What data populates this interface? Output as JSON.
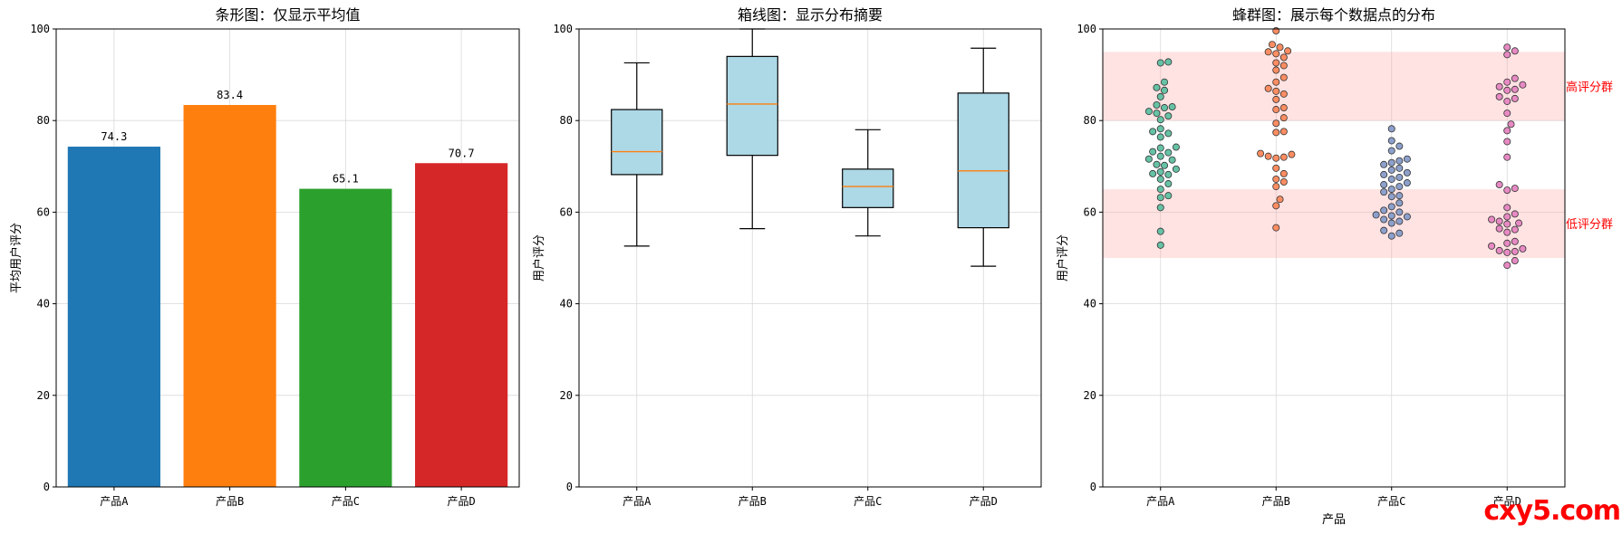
{
  "watermark": "cxy5.com",
  "chart_data": [
    {
      "type": "bar",
      "title": "条形图：仅显示平均值",
      "xlabel": "",
      "ylabel": "平均用户评分",
      "ylim": [
        0,
        100
      ],
      "yticks": [
        0,
        20,
        40,
        60,
        80,
        100
      ],
      "categories": [
        "产品A",
        "产品B",
        "产品C",
        "产品D"
      ],
      "values": [
        74.3,
        83.4,
        65.1,
        70.7
      ],
      "data_labels": [
        "74.3",
        "83.4",
        "65.1",
        "70.7"
      ],
      "colors": [
        "#1f77b4",
        "#ff7f0e",
        "#2ca02c",
        "#d62728"
      ],
      "grid": true
    },
    {
      "type": "box",
      "title": "箱线图：显示分布摘要",
      "xlabel": "",
      "ylabel": "用户评分",
      "ylim": [
        0,
        100
      ],
      "yticks": [
        0,
        20,
        40,
        60,
        80,
        100
      ],
      "categories": [
        "产品A",
        "产品B",
        "产品C",
        "产品D"
      ],
      "boxes": [
        {
          "whisker_low": 52.6,
          "q1": 68.2,
          "median": 73.2,
          "q3": 82.4,
          "whisker_high": 92.6
        },
        {
          "whisker_low": 56.4,
          "q1": 72.4,
          "median": 83.6,
          "q3": 94.0,
          "whisker_high": 100.0
        },
        {
          "whisker_low": 54.8,
          "q1": 61.0,
          "median": 65.6,
          "q3": 69.4,
          "whisker_high": 78.0
        },
        {
          "whisker_low": 48.2,
          "q1": 56.6,
          "median": 69.0,
          "q3": 86.0,
          "whisker_high": 95.8
        }
      ],
      "box_color": "#add8e6",
      "median_color": "#ff7f0e",
      "grid": true
    },
    {
      "type": "scatter",
      "title": "蜂群图：展示每个数据点的分布",
      "xlabel": "产品",
      "ylabel": "用户评分",
      "ylim": [
        0,
        100
      ],
      "yticks": [
        0,
        20,
        40,
        60,
        80,
        100
      ],
      "categories": [
        "产品A",
        "产品B",
        "产品C",
        "产品D"
      ],
      "colors": [
        "#66c2a5",
        "#fc8d62",
        "#8da0cb",
        "#e78ac3"
      ],
      "bands": [
        {
          "y0": 80,
          "y1": 95,
          "label": "高评分群",
          "color": "#ff9999"
        },
        {
          "y0": 50,
          "y1": 65,
          "label": "低评分群",
          "color": "#ff9999"
        }
      ],
      "series": [
        {
          "values": [
            52.8,
            55.8,
            61.0,
            63.2,
            63.6,
            65.0,
            66.2,
            67.2,
            68.2,
            68.4,
            68.8,
            69.4,
            70.2,
            70.4,
            71.4,
            71.6,
            72.2,
            73.0,
            73.2,
            74.0,
            74.2,
            76.4,
            77.2,
            77.6,
            78.2,
            80.2,
            81.0,
            81.6,
            82.0,
            82.8,
            83.0,
            83.4,
            85.2,
            86.6,
            87.2,
            88.4,
            92.6,
            92.8
          ]
        },
        {
          "values": [
            56.6,
            61.4,
            62.8,
            65.6,
            66.6,
            67.2,
            68.4,
            69.6,
            71.8,
            72.0,
            72.2,
            72.6,
            72.8,
            77.4,
            77.6,
            79.4,
            80.6,
            82.4,
            82.8,
            84.6,
            85.8,
            86.4,
            87.0,
            88.4,
            89.4,
            91.0,
            92.0,
            92.6,
            93.8,
            94.6,
            95.0,
            95.2,
            96.0,
            96.6,
            99.6
          ]
        },
        {
          "values": [
            54.8,
            55.4,
            56.0,
            57.6,
            58.0,
            58.4,
            59.0,
            59.2,
            59.4,
            60.0,
            60.4,
            61.2,
            62.0,
            63.4,
            63.6,
            64.4,
            65.0,
            65.6,
            66.0,
            66.4,
            67.2,
            67.6,
            68.2,
            68.6,
            69.2,
            69.6,
            70.4,
            70.8,
            71.2,
            71.6,
            73.4,
            74.4,
            75.6,
            78.2
          ]
        },
        {
          "values": [
            48.4,
            49.4,
            51.2,
            51.4,
            51.6,
            52.0,
            52.6,
            53.2,
            53.6,
            55.6,
            56.2,
            56.4,
            57.4,
            57.6,
            58.0,
            58.4,
            59.0,
            59.6,
            61.0,
            64.8,
            65.2,
            66.0,
            72.0,
            75.4,
            77.8,
            79.2,
            81.6,
            84.2,
            84.8,
            85.2,
            86.6,
            86.8,
            87.4,
            87.8,
            88.4,
            89.2,
            94.4,
            95.2,
            96.0
          ]
        }
      ],
      "grid": true
    }
  ]
}
